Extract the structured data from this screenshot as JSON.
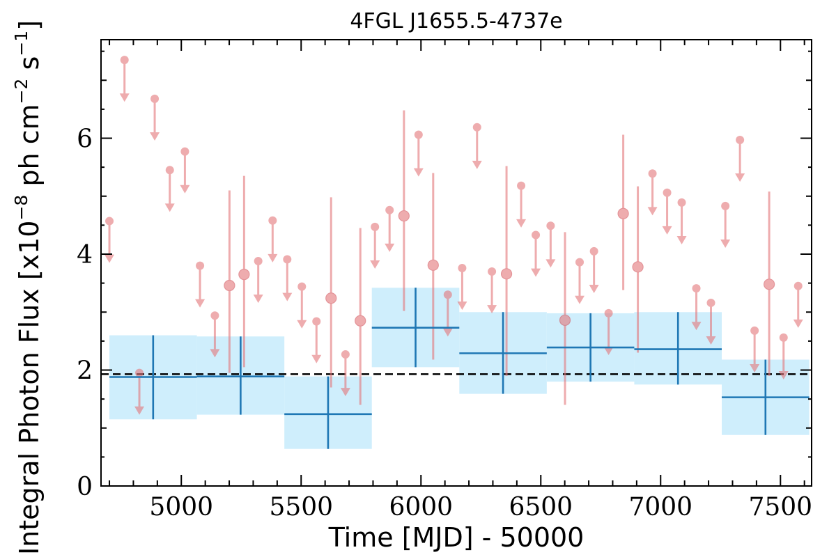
{
  "chart_data": {
    "type": "scatter",
    "title": "4FGL J1655.5-4737e",
    "xlabel": "Time [MJD] - 50000",
    "ylabel_main": "Integral Photon Flux [x10",
    "ylabel_exp1": "−8",
    "ylabel_mid": " ph cm",
    "ylabel_exp2": "−2",
    "ylabel_mid2": " s",
    "ylabel_exp3": "−1",
    "ylabel_end": "]",
    "xlim": [
      4665,
      7630
    ],
    "ylim": [
      0,
      7.7
    ],
    "x_ticks": [
      "5000",
      "5500",
      "6000",
      "6500",
      "7000",
      "7500"
    ],
    "y_ticks": [
      "0",
      "2",
      "4",
      "6"
    ],
    "mean_flux": 1.93,
    "colors": {
      "points": "#e3767a",
      "bins": "#1f77b4",
      "bin_band": "#cfeefc",
      "mean_line": "#000000"
    },
    "series": [
      {
        "upper_limits": [
          {
            "x": 4700,
            "y": 4.57
          },
          {
            "x": 4763,
            "y": 7.35
          },
          {
            "x": 4825,
            "y": 1.95
          },
          {
            "x": 4889,
            "y": 6.68
          },
          {
            "x": 4952,
            "y": 5.45
          },
          {
            "x": 5015,
            "y": 5.77
          },
          {
            "x": 5078,
            "y": 3.8
          },
          {
            "x": 5140,
            "y": 2.94
          },
          {
            "x": 5321,
            "y": 3.88
          },
          {
            "x": 5381,
            "y": 4.58
          },
          {
            "x": 5442,
            "y": 3.91
          },
          {
            "x": 5503,
            "y": 3.44
          },
          {
            "x": 5564,
            "y": 2.84
          },
          {
            "x": 5685,
            "y": 2.27
          },
          {
            "x": 5808,
            "y": 4.47
          },
          {
            "x": 5869,
            "y": 4.76
          },
          {
            "x": 5990,
            "y": 6.06
          },
          {
            "x": 6112,
            "y": 3.3
          },
          {
            "x": 6172,
            "y": 3.76
          },
          {
            "x": 6234,
            "y": 6.19
          },
          {
            "x": 6296,
            "y": 3.7
          },
          {
            "x": 6418,
            "y": 5.18
          },
          {
            "x": 6479,
            "y": 4.33
          },
          {
            "x": 6541,
            "y": 4.49
          },
          {
            "x": 6662,
            "y": 3.86
          },
          {
            "x": 6722,
            "y": 4.05
          },
          {
            "x": 6783,
            "y": 2.98
          },
          {
            "x": 6966,
            "y": 5.39
          },
          {
            "x": 7027,
            "y": 5.06
          },
          {
            "x": 7088,
            "y": 4.89
          },
          {
            "x": 7149,
            "y": 3.41
          },
          {
            "x": 7210,
            "y": 3.16
          },
          {
            "x": 7270,
            "y": 4.83
          },
          {
            "x": 7331,
            "y": 5.97
          },
          {
            "x": 7392,
            "y": 2.68
          },
          {
            "x": 7513,
            "y": 2.56
          },
          {
            "x": 7574,
            "y": 3.45
          }
        ],
        "detections": [
          {
            "x": 5201,
            "y": 3.46,
            "lo": 1.95,
            "hi": 5.1
          },
          {
            "x": 5262,
            "y": 3.65,
            "lo": 2.05,
            "hi": 5.35
          },
          {
            "x": 5625,
            "y": 3.24,
            "lo": 1.7,
            "hi": 4.98
          },
          {
            "x": 5747,
            "y": 2.85,
            "lo": 1.4,
            "hi": 4.45
          },
          {
            "x": 5929,
            "y": 4.66,
            "lo": 3.02,
            "hi": 6.48
          },
          {
            "x": 6051,
            "y": 3.81,
            "lo": 2.18,
            "hi": 5.4
          },
          {
            "x": 6357,
            "y": 3.66,
            "lo": 1.9,
            "hi": 5.52
          },
          {
            "x": 6601,
            "y": 2.86,
            "lo": 1.4,
            "hi": 4.38
          },
          {
            "x": 6844,
            "y": 4.7,
            "lo": 3.38,
            "hi": 6.06
          },
          {
            "x": 6905,
            "y": 3.78,
            "lo": 2.3,
            "hi": 5.17
          },
          {
            "x": 7453,
            "y": 3.48,
            "lo": 1.9,
            "hi": 5.08
          }
        ]
      },
      {
        "bins": [
          {
            "x0": 4700,
            "x1": 5065,
            "y": 1.88,
            "lo": 1.15,
            "hi": 2.6
          },
          {
            "x0": 5065,
            "x1": 5430,
            "y": 1.89,
            "lo": 1.23,
            "hi": 2.58
          },
          {
            "x0": 5430,
            "x1": 5795,
            "y": 1.24,
            "lo": 0.64,
            "hi": 1.89
          },
          {
            "x0": 5795,
            "x1": 6160,
            "y": 2.73,
            "lo": 2.05,
            "hi": 3.42
          },
          {
            "x0": 6160,
            "x1": 6525,
            "y": 2.29,
            "lo": 1.59,
            "hi": 3.0
          },
          {
            "x0": 6525,
            "x1": 6890,
            "y": 2.39,
            "lo": 1.8,
            "hi": 2.98
          },
          {
            "x0": 6890,
            "x1": 7255,
            "y": 2.36,
            "lo": 1.75,
            "hi": 3.0
          },
          {
            "x0": 7255,
            "x1": 7620,
            "y": 1.53,
            "lo": 0.88,
            "hi": 2.18
          }
        ]
      }
    ]
  }
}
